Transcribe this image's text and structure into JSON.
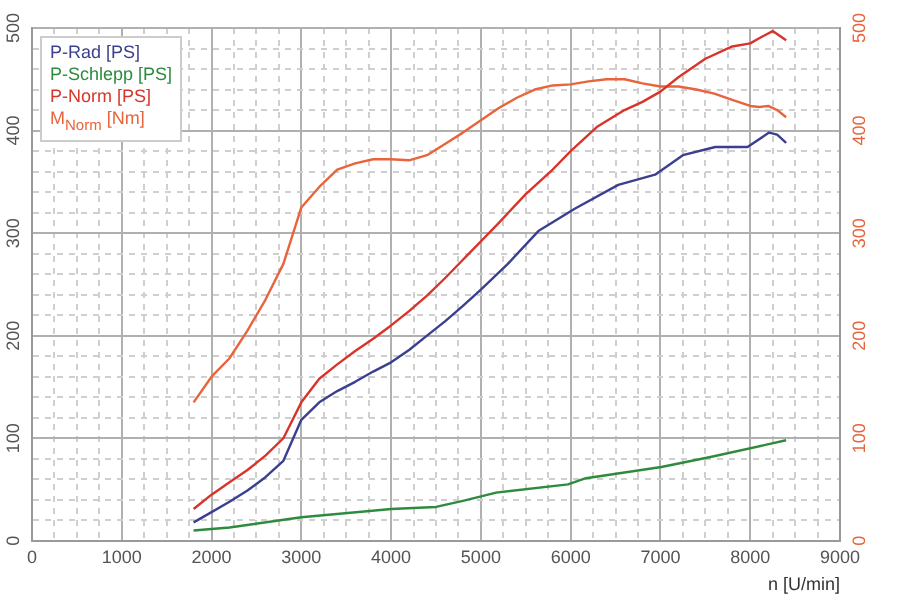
{
  "chart_data": {
    "type": "line",
    "xlabel": "n [U/min]",
    "legend": "top left",
    "grid": true,
    "marker": "none",
    "line_style": "solid",
    "xlim": [
      0,
      9000
    ],
    "xticks": [
      0,
      {
        "value": 250,
        "label": null
      },
      {
        "value": 500,
        "label": null
      },
      {
        "value": 750,
        "label": null
      },
      1000,
      {
        "value": 1250,
        "label": null
      },
      {
        "value": 1500,
        "label": null
      },
      {
        "value": 1750,
        "label": null
      },
      2000,
      {
        "value": 2250,
        "label": null
      },
      {
        "value": 2500,
        "label": null
      },
      {
        "value": 2750,
        "label": null
      },
      3000,
      {
        "value": 3250,
        "label": null
      },
      {
        "value": 3500,
        "label": null
      },
      {
        "value": 3750,
        "label": null
      },
      4000,
      {
        "value": 4250,
        "label": null
      },
      {
        "value": 4500,
        "label": null
      },
      {
        "value": 4750,
        "label": null
      },
      5000,
      {
        "value": 5250,
        "label": null
      },
      {
        "value": 5500,
        "label": null
      },
      {
        "value": 5750,
        "label": null
      },
      6000,
      {
        "value": 6250,
        "label": null
      },
      {
        "value": 6500,
        "label": null
      },
      {
        "value": 6750,
        "label": null
      },
      7000,
      {
        "value": 7250,
        "label": null
      },
      {
        "value": 7500,
        "label": null
      },
      {
        "value": 7750,
        "label": null
      },
      8000,
      {
        "value": 8250,
        "label": null
      },
      {
        "value": 8500,
        "label": null
      },
      {
        "value": 8750,
        "label": null
      },
      9000
    ],
    "ylim": [
      0,
      500
    ],
    "yticks": [
      0,
      {
        "value": 20,
        "label": null
      },
      {
        "value": 40,
        "label": null
      },
      {
        "value": 60,
        "label": null
      },
      {
        "value": 80,
        "label": null
      },
      100,
      {
        "value": 120,
        "label": null
      },
      {
        "value": 140,
        "label": null
      },
      {
        "value": 160,
        "label": null
      },
      {
        "value": 180,
        "label": null
      },
      200,
      {
        "value": 220,
        "label": null
      },
      {
        "value": 240,
        "label": null
      },
      {
        "value": 260,
        "label": null
      },
      {
        "value": 280,
        "label": null
      },
      300,
      {
        "value": 320,
        "label": null
      },
      {
        "value": 340,
        "label": null
      },
      {
        "value": 360,
        "label": null
      },
      {
        "value": 380,
        "label": null
      },
      400,
      {
        "value": 420,
        "label": null
      },
      {
        "value": 440,
        "label": null
      },
      {
        "value": 460,
        "label": null
      },
      {
        "value": 480,
        "label": null
      },
      500
    ],
    "y2lim": [
      0,
      500
    ],
    "y2ticks": [
      0,
      100,
      200,
      300,
      400,
      500
    ],
    "series": [
      {
        "name": "P-Rad [PS]",
        "color": "#3b3f8f",
        "x": [
          1800,
          2000,
          2200,
          2400,
          2600,
          2800,
          3000,
          3200,
          3400,
          3600,
          3800,
          4000,
          4200,
          4400,
          4600,
          4800,
          5000,
          5300,
          5640,
          6050,
          6530,
          6940,
          7250,
          7610,
          7970,
          8210,
          8300,
          8400
        ],
        "values": [
          18,
          28,
          38,
          49,
          62,
          78,
          118,
          135,
          146,
          155,
          165,
          174,
          186,
          200,
          214,
          229,
          245,
          270,
          302,
          324,
          347,
          357,
          376,
          384,
          384,
          398,
          396,
          388
        ]
      },
      {
        "name": "P-Schlepp [PS]",
        "color": "#2e8b3e",
        "x": [
          1800,
          2200,
          3000,
          4000,
          4500,
          4800,
          5170,
          5970,
          6170,
          7010,
          7570,
          8400
        ],
        "values": [
          10,
          13,
          23,
          31,
          33,
          39,
          47,
          55,
          61,
          72,
          82,
          98
        ]
      },
      {
        "name": "P-Norm [PS]",
        "color": "#d9342b",
        "x": [
          1800,
          2000,
          2200,
          2400,
          2600,
          2800,
          3000,
          3200,
          3400,
          3600,
          3800,
          4000,
          4200,
          4400,
          4600,
          4800,
          5000,
          5200,
          5500,
          5800,
          6000,
          6300,
          6600,
          6800,
          7000,
          7200,
          7500,
          7800,
          8000,
          8100,
          8250,
          8400
        ],
        "values": [
          31,
          45,
          57,
          69,
          83,
          100,
          135,
          158,
          172,
          185,
          197,
          210,
          224,
          239,
          256,
          274,
          292,
          310,
          338,
          362,
          380,
          404,
          420,
          428,
          438,
          452,
          470,
          482,
          485,
          490,
          497,
          488
        ]
      },
      {
        "name": "M$_{Norm}$ [Nm]",
        "color": "#e8643c",
        "axis": "y2",
        "x": [
          1800,
          2000,
          2200,
          2400,
          2600,
          2800,
          3000,
          3200,
          3400,
          3600,
          3800,
          4000,
          4200,
          4400,
          4600,
          4800,
          5000,
          5200,
          5400,
          5600,
          5800,
          6000,
          6200,
          6400,
          6600,
          6800,
          7000,
          7200,
          7400,
          7600,
          7800,
          8000,
          8100,
          8200,
          8300,
          8400
        ],
        "values": [
          135,
          160,
          178,
          205,
          235,
          270,
          325,
          345,
          362,
          368,
          372,
          372,
          371,
          376,
          387,
          398,
          410,
          422,
          432,
          440,
          444,
          445,
          448,
          450,
          450,
          446,
          443,
          443,
          440,
          436,
          430,
          424,
          423,
          424,
          420,
          413
        ]
      }
    ]
  }
}
